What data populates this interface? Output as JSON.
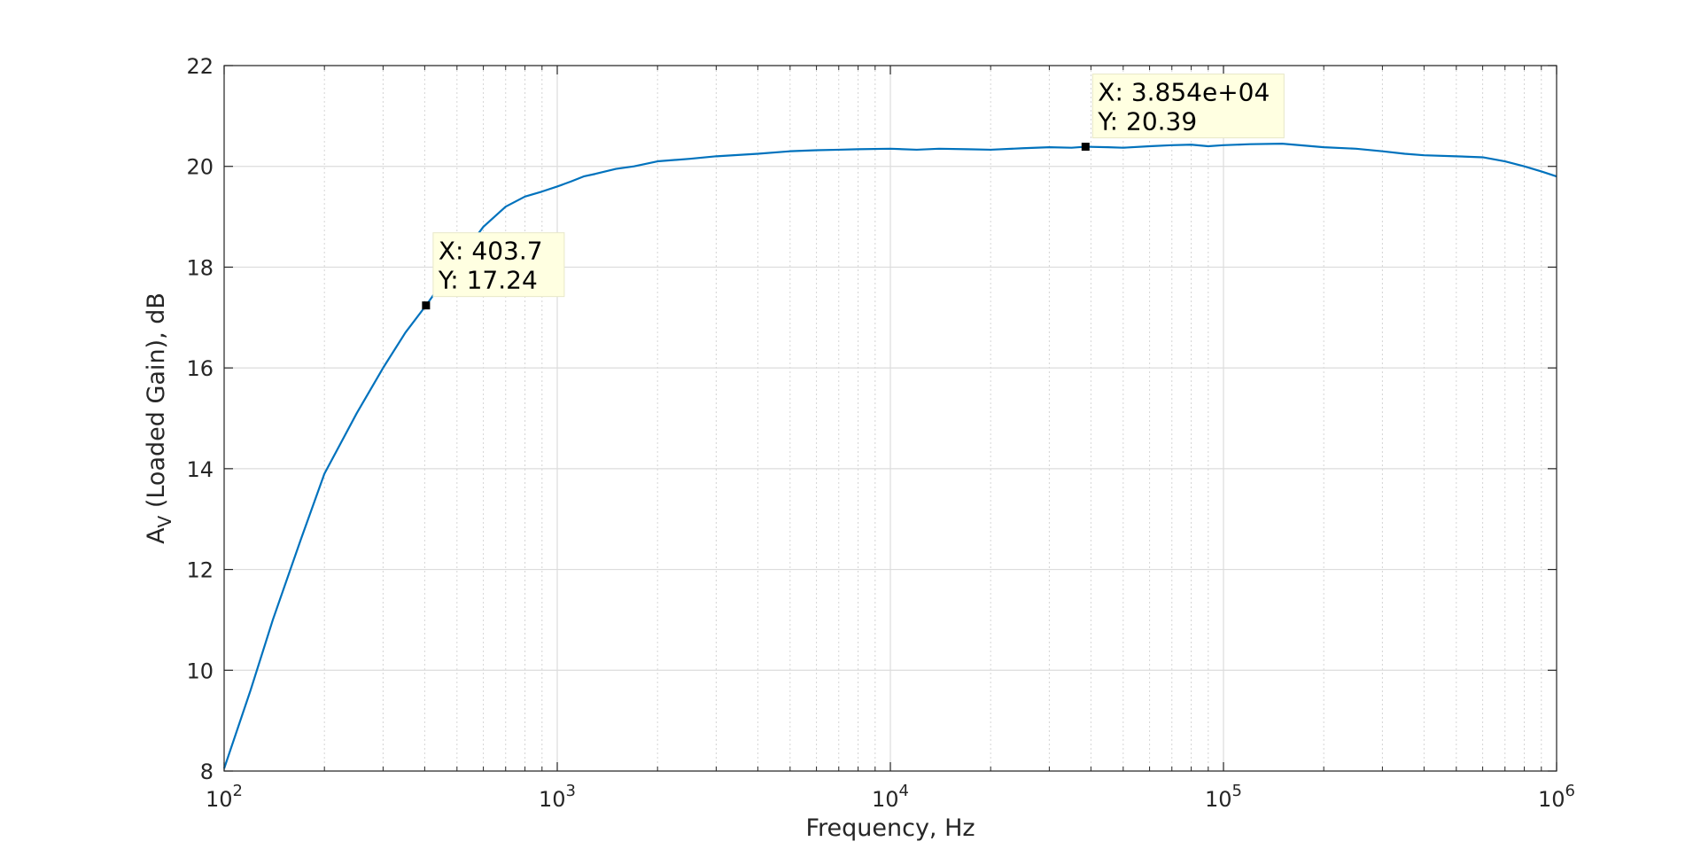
{
  "chart_data": {
    "type": "line",
    "title": "",
    "xlabel": "Frequency, Hz",
    "ylabel_main": "A",
    "ylabel_sub": "V",
    "ylabel_rest": " (Loaded Gain), dB",
    "xscale": "log",
    "xlim": [
      100,
      1000000
    ],
    "ylim": [
      8,
      22
    ],
    "grid": true,
    "minor_grid": true,
    "x_ticks": [
      {
        "base": "10",
        "exp": "2"
      },
      {
        "base": "10",
        "exp": "3"
      },
      {
        "base": "10",
        "exp": "4"
      },
      {
        "base": "10",
        "exp": "5"
      },
      {
        "base": "10",
        "exp": "6"
      }
    ],
    "y_ticks": [
      "8",
      "10",
      "12",
      "14",
      "16",
      "18",
      "20",
      "22"
    ],
    "series": [
      {
        "color": "#0072BD",
        "x": [
          100,
          120,
          140,
          170,
          200,
          250,
          300,
          350,
          403.7,
          500,
          600,
          700,
          800,
          900,
          1000,
          1100,
          1200,
          1300,
          1500,
          1700,
          2000,
          2500,
          3000,
          4000,
          5000,
          6000,
          7000,
          8000,
          10000,
          12000,
          14000,
          17000,
          20000,
          25000,
          30000,
          35000,
          38540,
          45000,
          50000,
          60000,
          70000,
          80000,
          90000,
          100000,
          120000,
          150000,
          200000,
          250000,
          300000,
          350000,
          400000,
          500000,
          600000,
          700000,
          800000,
          900000,
          1000000
        ],
        "y": [
          8.05,
          9.6,
          11.0,
          12.6,
          13.9,
          15.1,
          16.0,
          16.7,
          17.24,
          18.1,
          18.8,
          19.2,
          19.4,
          19.5,
          19.6,
          19.7,
          19.8,
          19.85,
          19.95,
          20.0,
          20.1,
          20.15,
          20.2,
          20.25,
          20.3,
          20.32,
          20.33,
          20.34,
          20.35,
          20.33,
          20.35,
          20.34,
          20.33,
          20.36,
          20.38,
          20.37,
          20.39,
          20.38,
          20.37,
          20.4,
          20.42,
          20.43,
          20.4,
          20.42,
          20.44,
          20.45,
          20.38,
          20.35,
          20.3,
          20.25,
          20.22,
          20.2,
          20.18,
          20.1,
          20.0,
          19.9,
          19.8
        ]
      }
    ],
    "datatips": [
      {
        "x": 403.7,
        "y": 17.24,
        "label_x": "X: 403.7",
        "label_y": "Y: 17.24"
      },
      {
        "x": 38540,
        "y": 20.39,
        "label_x": "X: 3.854e+04",
        "label_y": "Y: 20.39"
      }
    ]
  }
}
